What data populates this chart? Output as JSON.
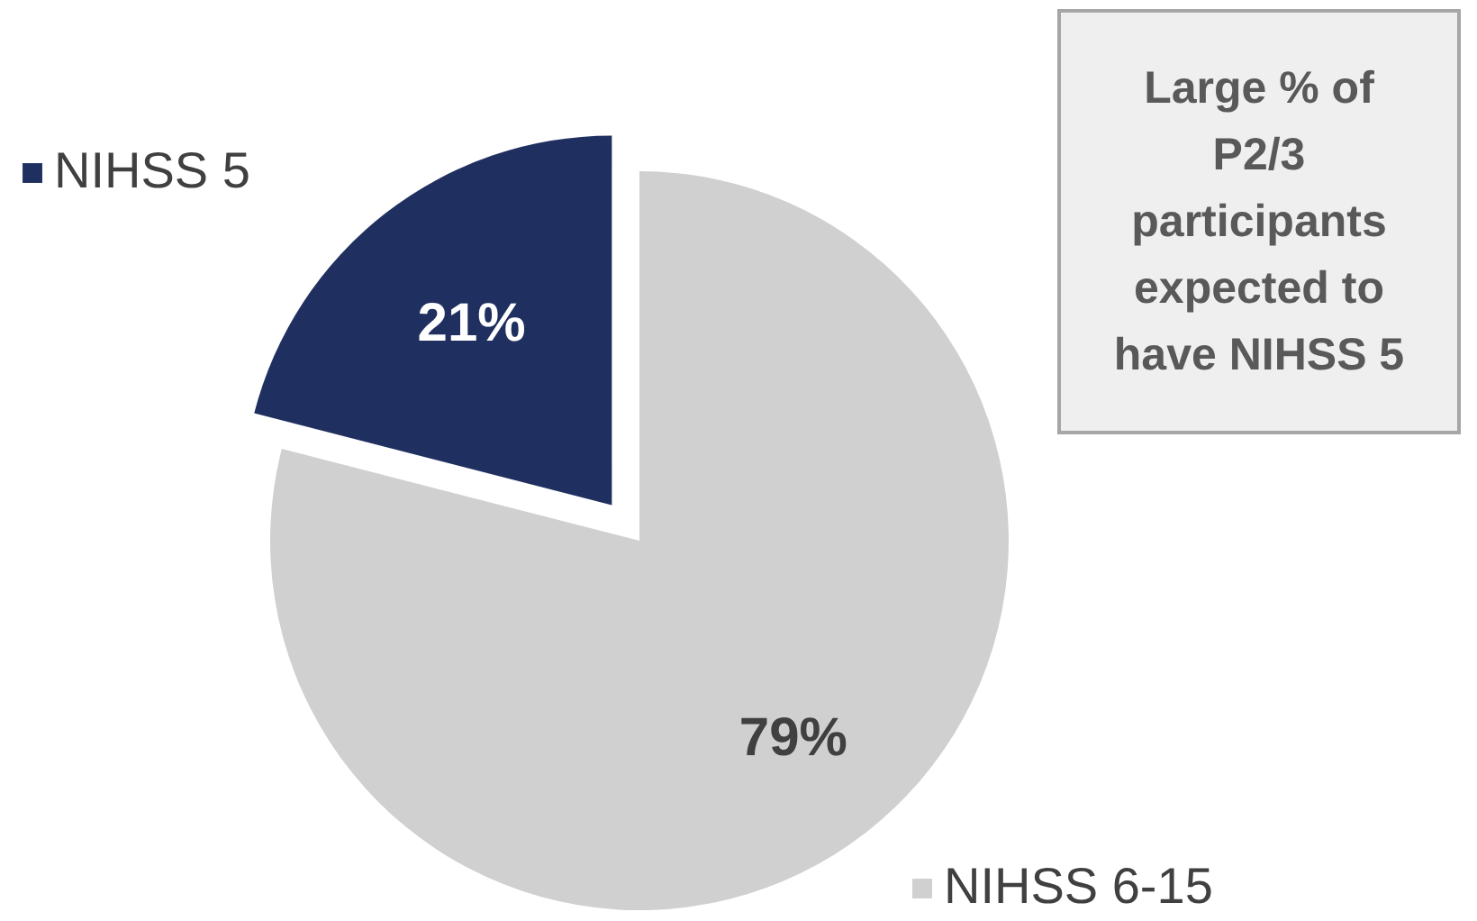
{
  "chart_data": {
    "type": "pie",
    "categories": [
      "NIHSS 5",
      "NIHSS 6-15"
    ],
    "values": [
      21,
      79
    ],
    "colors": [
      "#1f3060",
      "#d0d0d0"
    ],
    "value_labels": [
      "21%",
      "79%"
    ],
    "legend": "left",
    "annotations": [
      "Large % of P2/3 participants expected to have NIHSS 5"
    ]
  }
}
